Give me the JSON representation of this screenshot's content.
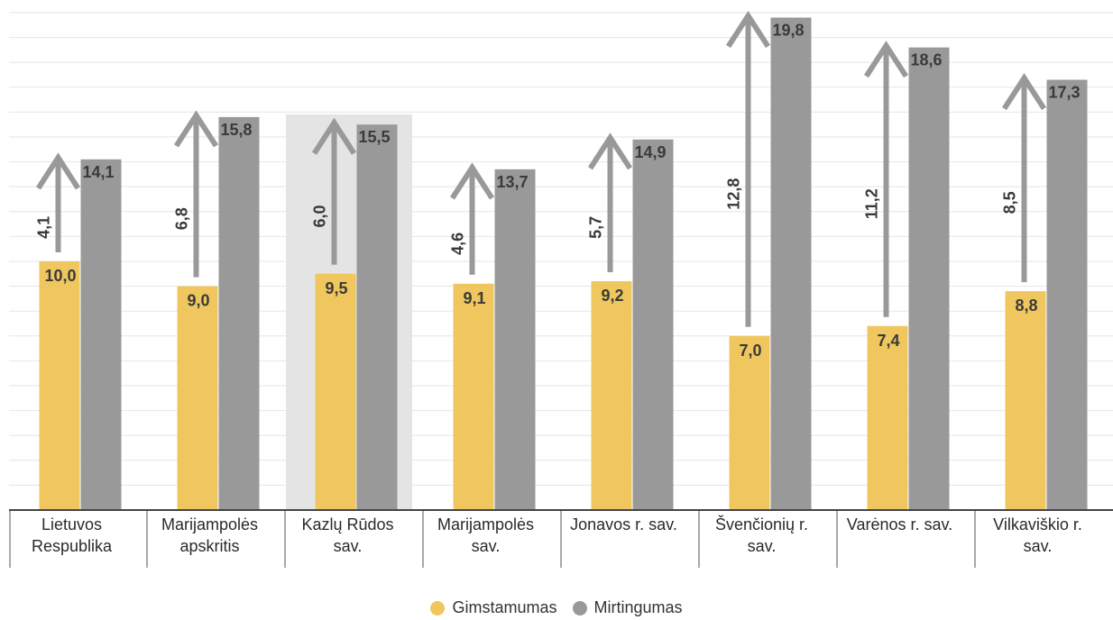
{
  "chart_data": {
    "type": "bar",
    "categories": [
      [
        "Lietuvos",
        "Respublika"
      ],
      [
        "Marijampolės",
        "apskritis"
      ],
      [
        "Kazlų Rūdos",
        "sav."
      ],
      [
        "Marijampolės",
        "sav."
      ],
      [
        "Jonavos r. sav."
      ],
      [
        "Švenčionių r.",
        "sav."
      ],
      [
        "Varėnos r. sav."
      ],
      [
        "Vilkaviškio r.",
        "sav."
      ]
    ],
    "series": [
      {
        "name": "Gimstamumas",
        "color": "#efc75e",
        "values": [
          10.0,
          9.0,
          9.5,
          9.1,
          9.2,
          7.0,
          7.4,
          8.8
        ],
        "labels": [
          "10,0",
          "9,0",
          "9,5",
          "9,1",
          "9,2",
          "7,0",
          "7,4",
          "8,8"
        ]
      },
      {
        "name": "Mirtingumas",
        "color": "#999999",
        "values": [
          14.1,
          15.8,
          15.5,
          13.7,
          14.9,
          19.8,
          18.6,
          17.3
        ],
        "labels": [
          "14,1",
          "15,8",
          "15,5",
          "13,7",
          "14,9",
          "19,8",
          "18,6",
          "17,3"
        ]
      }
    ],
    "differences": {
      "values": [
        4.1,
        6.8,
        6.0,
        4.6,
        5.7,
        12.8,
        11.2,
        8.5
      ],
      "labels": [
        "4,1",
        "6,8",
        "6,0",
        "4,6",
        "5,7",
        "12,8",
        "11,2",
        "8,5"
      ],
      "color": "#999999"
    },
    "highlighted_category": 2,
    "highlight_color": "#e4e4e4",
    "ylim": [
      0,
      20
    ],
    "grid": true,
    "title": "",
    "xlabel": "",
    "ylabel": "",
    "legend_position": "bottom"
  }
}
